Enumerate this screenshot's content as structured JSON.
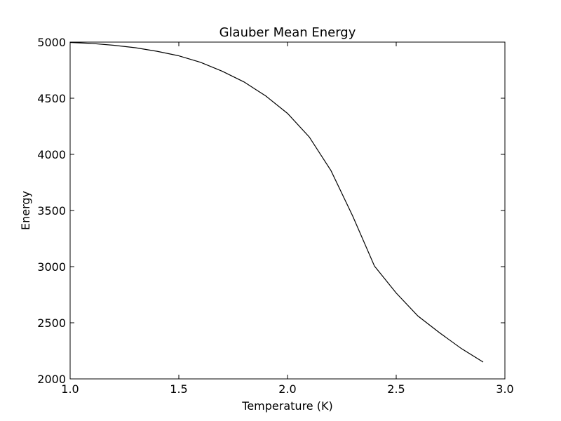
{
  "chart_data": {
    "type": "line",
    "title": "Glauber Mean Energy",
    "xlabel": "Temperature (K)",
    "ylabel": "Energy",
    "xlim": [
      1.0,
      3.0
    ],
    "ylim": [
      2000,
      5000
    ],
    "xticks": [
      "1.0",
      "1.5",
      "2.0",
      "2.5",
      "3.0"
    ],
    "yticks": [
      "2000",
      "2500",
      "3000",
      "3500",
      "4000",
      "4500",
      "5000"
    ],
    "grid": false,
    "line_color": "#000000",
    "series": [
      {
        "x": [
          1.0,
          1.1,
          1.2,
          1.3,
          1.4,
          1.5,
          1.6,
          1.7,
          1.8,
          1.9,
          2.0,
          2.1,
          2.2,
          2.3,
          2.4,
          2.5,
          2.6,
          2.7,
          2.8,
          2.9
        ],
        "y": [
          4997,
          4988,
          4972,
          4950,
          4918,
          4878,
          4820,
          4740,
          4645,
          4520,
          4365,
          4155,
          3855,
          3450,
          3005,
          2765,
          2560,
          2410,
          2270,
          2150
        ]
      }
    ]
  }
}
